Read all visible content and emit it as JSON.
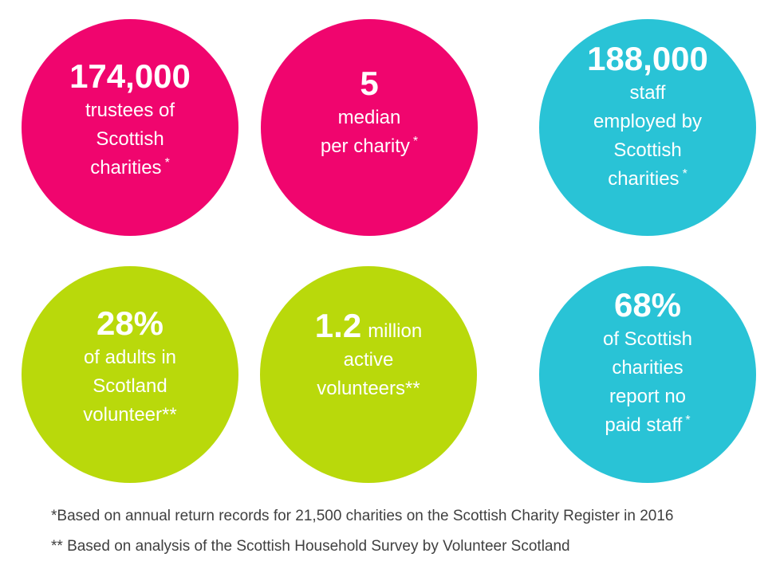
{
  "colors": {
    "pink": "#f0056e",
    "teal": "#29c3d6",
    "lime": "#b9d90b",
    "text": "#ffffff",
    "note": "#404040"
  },
  "circles": [
    {
      "figure": "174,000",
      "lines": [
        "trustees of",
        "Scottish",
        "charities"
      ],
      "marker": "*"
    },
    {
      "figure": "5",
      "lines": [
        "median",
        "per charity"
      ],
      "marker": "*"
    },
    {
      "figure": "188,000",
      "lines": [
        "staff",
        "employed by",
        "Scottish",
        "charities"
      ],
      "marker": "*"
    },
    {
      "figure": "28%",
      "lines": [
        "of adults in",
        "Scotland",
        "volunteer**"
      ],
      "marker": ""
    },
    {
      "figure": "1.2",
      "suffix": "million",
      "lines": [
        "active",
        "volunteers**"
      ],
      "marker": ""
    },
    {
      "figure": "68%",
      "lines": [
        "of Scottish",
        "charities",
        "report no",
        "paid staff"
      ],
      "marker": "*"
    }
  ],
  "footnotes": [
    "*Based on annual return records for 21,500 charities on the Scottish Charity Register in 2016",
    "** Based on analysis of the Scottish Household Survey by Volunteer Scotland"
  ]
}
